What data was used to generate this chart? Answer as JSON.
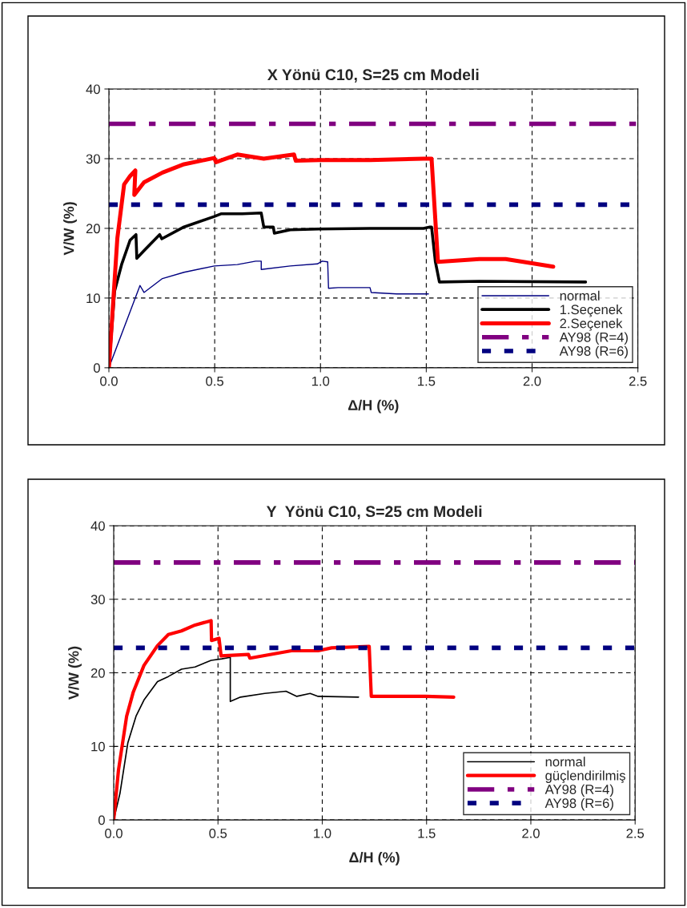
{
  "chart_data": [
    {
      "type": "line",
      "title": "X Yönü C10, S=25 cm Modeli",
      "xlabel": "Δ/H (%)",
      "ylabel": "V/W (%)",
      "xlim": [
        0,
        2.5
      ],
      "xticks": [
        {
          "value": 0,
          "label": "0.0"
        },
        0.5,
        {
          "value": 1,
          "label": "1.0"
        },
        1.5,
        {
          "value": 2,
          "label": "2.0"
        },
        2.5
      ],
      "ylim": [
        0,
        40
      ],
      "yticks": [
        0,
        10,
        20,
        30,
        40
      ],
      "grid": true,
      "legend": "bottom right",
      "series": [
        {
          "name": "normal",
          "color": "#000080",
          "x": [
            0,
            0.147,
            0.166,
            0.253,
            0.355,
            0.498,
            0.607,
            0.694,
            0.72,
            0.72,
            0.857,
            0.985,
            1.008,
            1.034,
            1.038,
            1.083,
            1.234,
            1.24,
            1.36,
            1.51
          ],
          "values": [
            0,
            11.8,
            10.8,
            12.8,
            13.7,
            14.6,
            14.8,
            15.3,
            15.3,
            14.1,
            14.6,
            14.9,
            15.3,
            15.2,
            11.4,
            11.5,
            11.5,
            10.8,
            10.6,
            10.6
          ]
        },
        {
          "name": "1.Seçenek",
          "color": "#000000",
          "x": [
            0,
            0.027,
            0.06,
            0.1,
            0.128,
            0.132,
            0.166,
            0.24,
            0.25,
            0.355,
            0.498,
            0.532,
            0.63,
            0.72,
            0.732,
            0.777,
            0.782,
            0.857,
            0.992,
            1.234,
            1.487,
            1.517,
            1.525,
            1.543,
            1.562,
            1.75,
            2.253
          ],
          "values": [
            0,
            11.0,
            14.8,
            18.3,
            19.1,
            15.7,
            16.8,
            19.1,
            18.5,
            20.2,
            21.7,
            22.1,
            22.1,
            22.2,
            20.2,
            20.2,
            19.3,
            19.8,
            19.9,
            20.0,
            20.0,
            20.2,
            20.2,
            15.2,
            12.3,
            12.4,
            12.3
          ]
        },
        {
          "name": "2.Seçenek",
          "color": "#ff0000",
          "x": [
            0,
            0.04,
            0.072,
            0.1,
            0.125,
            0.12,
            0.166,
            0.253,
            0.355,
            0.498,
            0.506,
            0.607,
            0.732,
            0.875,
            0.883,
            0.992,
            1.234,
            1.487,
            1.525,
            1.555,
            1.75,
            1.875,
            2.0,
            2.1
          ],
          "values": [
            0,
            18.6,
            26.3,
            27.5,
            28.3,
            24.8,
            26.6,
            28.0,
            29.2,
            30.1,
            29.5,
            30.6,
            30.0,
            30.6,
            29.7,
            29.8,
            29.8,
            30.0,
            30.0,
            15.2,
            15.6,
            15.6,
            15.0,
            14.5
          ]
        },
        {
          "name": "AY98 (R=4)",
          "color": "#800080",
          "x": [
            0,
            2.5
          ],
          "values": [
            35,
            35
          ],
          "line_style": "dashed"
        },
        {
          "name": "AY98 (R=6)",
          "color": "#000080",
          "x": [
            0,
            2.5
          ],
          "values": [
            23.4,
            23.4
          ],
          "line_style": "dotted"
        }
      ]
    },
    {
      "type": "line",
      "title": "Y  Yönü C10, S=25 cm Modeli",
      "xlabel": "Δ/H (%)",
      "ylabel": "V/W (%)",
      "xlim": [
        0,
        2.5
      ],
      "xticks": [
        {
          "value": 0,
          "label": "0.0"
        },
        0.5,
        {
          "value": 1,
          "label": "1.0"
        },
        1.5,
        {
          "value": 2,
          "label": "2.0"
        },
        2.5
      ],
      "ylim": [
        0,
        40
      ],
      "yticks": [
        0,
        10,
        20,
        30,
        40
      ],
      "grid": true,
      "legend": "bottom right",
      "series": [
        {
          "name": "normal",
          "color": "#000000",
          "x": [
            0,
            0.03,
            0.068,
            0.107,
            0.145,
            0.21,
            0.262,
            0.325,
            0.39,
            0.467,
            0.518,
            0.559,
            0.559,
            0.608,
            0.724,
            0.826,
            0.878,
            0.942,
            0.98,
            1.174
          ],
          "values": [
            0,
            3.6,
            10.5,
            14.1,
            16.3,
            18.8,
            19.5,
            20.5,
            20.8,
            21.7,
            21.9,
            22.1,
            16.1,
            16.7,
            17.2,
            17.5,
            16.8,
            17.2,
            16.8,
            16.7
          ]
        },
        {
          "name": "güçlendirilmiş",
          "color": "#ff0000",
          "x": [
            0,
            0.023,
            0.062,
            0.094,
            0.145,
            0.21,
            0.262,
            0.325,
            0.39,
            0.467,
            0.469,
            0.505,
            0.515,
            0.646,
            0.653,
            0.852,
            0.98,
            1.045,
            1.225,
            1.235,
            1.495,
            1.63
          ],
          "values": [
            0,
            6.8,
            14.1,
            17.4,
            21.0,
            23.7,
            25.2,
            25.7,
            26.5,
            27.1,
            24.4,
            24.7,
            22.3,
            22.5,
            22.0,
            23.0,
            23.0,
            23.4,
            23.6,
            16.8,
            16.8,
            16.7
          ]
        },
        {
          "name": "AY98 (R=4)",
          "color": "#800080",
          "x": [
            0,
            2.5
          ],
          "values": [
            35,
            35
          ],
          "line_style": "dashed"
        },
        {
          "name": "AY98 (R=6)",
          "color": "#000080",
          "x": [
            0,
            2.5
          ],
          "values": [
            23.4,
            23.4
          ],
          "line_style": "dotted"
        }
      ]
    }
  ]
}
